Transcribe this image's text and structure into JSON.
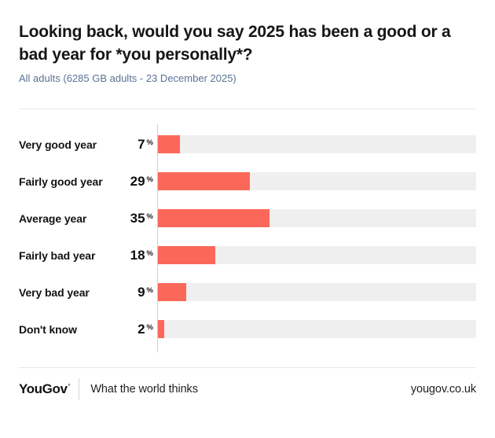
{
  "header": {
    "title": "Looking back, would you say 2025 has been a good or a bad year for *you personally*?",
    "subtitle": "All adults (6285 GB adults - 23 December 2025)"
  },
  "chart_data": {
    "type": "bar",
    "orientation": "horizontal",
    "title": "Looking back, would you say 2025 has been a good or a bad year for *you personally*?",
    "subtitle": "All adults (6285 GB adults - 23 December 2025)",
    "categories": [
      "Very good year",
      "Fairly good year",
      "Average year",
      "Fairly bad year",
      "Very bad year",
      "Don't know"
    ],
    "values": [
      7,
      29,
      35,
      18,
      9,
      2
    ],
    "unit": "%",
    "xlim": [
      0,
      100
    ],
    "grid": false,
    "legend": "none",
    "value_labels": "left of bars, bold",
    "bar_color": "#fb685a",
    "track_color": "#efefef",
    "axis_color": "#cfcfcf"
  },
  "footer": {
    "logo": "YouGov",
    "logo_mark": "°",
    "tagline": "What the world thinks",
    "url": "yougov.co.uk"
  },
  "colors": {
    "title_text": "#161616",
    "subtitle_text": "#5b7294",
    "accent": "#fb685a",
    "divider": "#e8e8e8"
  }
}
